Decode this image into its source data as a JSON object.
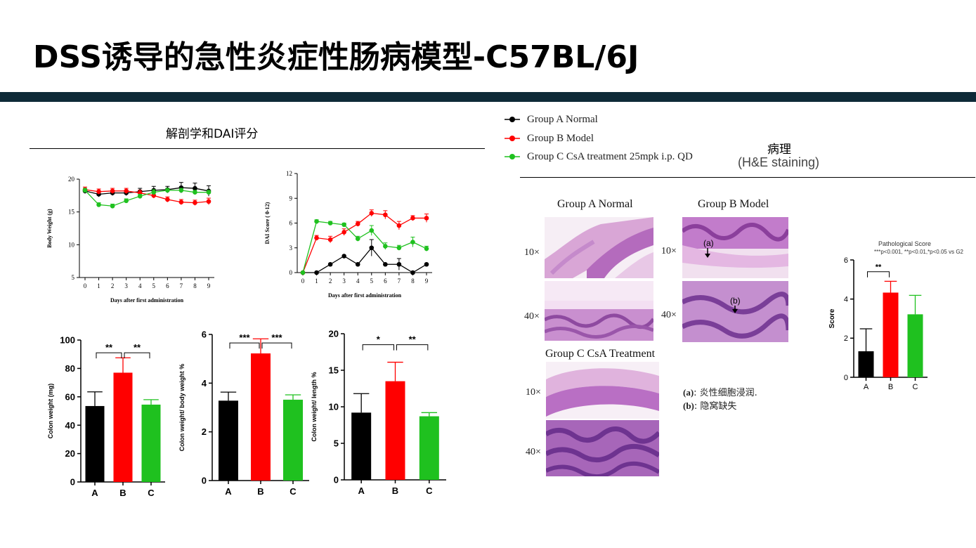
{
  "slide": {
    "title": "DSS诱导的急性炎症性肠病模型-C57BL/6J",
    "left_heading": "解剖学和DAI评分",
    "right_heading": "病理",
    "right_subheading": "(H&E staining)"
  },
  "colors": {
    "group_a": "#000000",
    "group_b": "#ff0000",
    "group_c": "#1fc11f",
    "bar": "#0e2a38"
  },
  "legend": [
    {
      "label": "Group A Normal",
      "color": "#000000"
    },
    {
      "label": "Group B Model",
      "color": "#ff0000"
    },
    {
      "label": "Group C CsA treatment 25mpk i.p. QD",
      "color": "#1fc11f"
    }
  ],
  "histology": {
    "group_a": "Group A Normal",
    "group_b": "Group B Model",
    "group_c": "Group C CsA Treatment",
    "mag_10": "10×",
    "mag_40": "40×",
    "marker_a": "(a)",
    "marker_b": "(b)",
    "note_a_key": "(a)",
    "note_a_text": ": 炎性细胞浸润.",
    "note_b_key": "(b)",
    "note_b_text": ": 隐窝缺失"
  },
  "chart_data": [
    {
      "id": "bw",
      "type": "line",
      "xlabel": "Days after first administration",
      "ylabel": "Body Weight (g)",
      "x": [
        0,
        1,
        2,
        3,
        4,
        5,
        6,
        7,
        8,
        9
      ],
      "ylim": [
        5,
        20
      ],
      "yticks": [
        5,
        10,
        15,
        20
      ],
      "series": [
        {
          "color": "#000000",
          "values": [
            18.2,
            17.7,
            17.9,
            17.9,
            18.1,
            18.3,
            18.4,
            18.7,
            18.6,
            18.2
          ],
          "err": [
            0.4,
            0.4,
            0.4,
            0.4,
            0.5,
            0.6,
            0.5,
            0.8,
            0.8,
            0.8
          ]
        },
        {
          "color": "#ff0000",
          "values": [
            18.4,
            18.1,
            18.2,
            18.2,
            17.9,
            17.5,
            16.9,
            16.5,
            16.4,
            16.6
          ],
          "err": [
            0.4,
            0.4,
            0.4,
            0.4,
            0.4,
            0.4,
            0.4,
            0.4,
            0.4,
            0.5
          ]
        },
        {
          "color": "#1fc11f",
          "values": [
            18.3,
            16.1,
            15.9,
            16.7,
            17.4,
            18.0,
            18.3,
            18.3,
            18.0,
            18.0
          ],
          "err": [
            0.3,
            0.3,
            0.3,
            0.3,
            0.3,
            0.4,
            0.3,
            0.3,
            0.3,
            0.3
          ]
        }
      ]
    },
    {
      "id": "dai",
      "type": "line",
      "xlabel": "Days after first administration",
      "ylabel": "DAI Score ( 0-12)",
      "x": [
        0,
        1,
        2,
        3,
        4,
        5,
        6,
        7,
        8,
        9
      ],
      "ylim": [
        0,
        12
      ],
      "yticks": [
        0,
        3,
        6,
        9,
        12
      ],
      "series": [
        {
          "color": "#000000",
          "values": [
            0,
            0,
            1,
            2,
            1,
            3,
            1,
            1,
            0,
            1
          ],
          "err": [
            0,
            0,
            0,
            0,
            0,
            1,
            0,
            0.7,
            0,
            0
          ]
        },
        {
          "color": "#ff0000",
          "values": [
            0,
            4.2,
            4.0,
            4.9,
            5.9,
            7.2,
            7.0,
            5.7,
            6.6,
            6.6
          ],
          "err": [
            0,
            0.3,
            0.4,
            0.4,
            0.3,
            0.4,
            0.5,
            0.5,
            0.3,
            0.5
          ]
        },
        {
          "color": "#1fc11f",
          "values": [
            0,
            6.2,
            6.0,
            5.8,
            4.1,
            5.1,
            3.2,
            3.0,
            3.7,
            2.9
          ],
          "err": [
            0,
            0.2,
            0.2,
            0.2,
            0.3,
            0.6,
            0.4,
            0.3,
            0.6,
            0.3
          ]
        }
      ]
    },
    {
      "id": "cw",
      "type": "bar",
      "categories": [
        "A",
        "B",
        "C"
      ],
      "ylabel": "Colon weight (mg)",
      "ylim": [
        0,
        100
      ],
      "yticks": [
        0,
        20,
        40,
        60,
        80,
        100
      ],
      "values": [
        53.5,
        77,
        54.5
      ],
      "err": [
        10,
        10.5,
        3.5
      ],
      "colors": [
        "#000000",
        "#ff0000",
        "#1fc11f"
      ],
      "significance": [
        {
          "from": 0,
          "to": 1,
          "label": "**",
          "y": 91
        },
        {
          "from": 1,
          "to": 2,
          "label": "**",
          "y": 91
        }
      ]
    },
    {
      "id": "cwbw",
      "type": "bar",
      "categories": [
        "A",
        "B",
        "C"
      ],
      "ylabel": "Colon weight/ body weight %",
      "ylim": [
        0,
        6
      ],
      "yticks": [
        0,
        2,
        4,
        6
      ],
      "values": [
        3.28,
        5.22,
        3.32
      ],
      "err": [
        0.35,
        0.6,
        0.2
      ],
      "colors": [
        "#000000",
        "#ff0000",
        "#1fc11f"
      ],
      "significance": [
        {
          "from": 0,
          "to": 1,
          "label": "***",
          "y": 5.65
        },
        {
          "from": 1,
          "to": 2,
          "label": "***",
          "y": 5.65
        }
      ]
    },
    {
      "id": "cwl",
      "type": "bar",
      "categories": [
        "A",
        "B",
        "C"
      ],
      "ylabel": "Colon weight/ length %",
      "ylim": [
        0,
        20
      ],
      "yticks": [
        0,
        5,
        10,
        15,
        20
      ],
      "values": [
        9.2,
        13.5,
        8.7
      ],
      "err": [
        2.6,
        2.6,
        0.5
      ],
      "colors": [
        "#000000",
        "#ff0000",
        "#1fc11f"
      ],
      "significance": [
        {
          "from": 0,
          "to": 1,
          "label": "*",
          "y": 18.5
        },
        {
          "from": 1,
          "to": 2,
          "label": "**",
          "y": 18.5
        }
      ]
    },
    {
      "id": "path",
      "type": "bar",
      "title": "Pathological Score",
      "subtitle": "***p<0.001, **p<0.01,*p<0.05 vs G2",
      "categories": [
        "A",
        "B",
        "C"
      ],
      "ylabel": "Score",
      "ylim": [
        0,
        6
      ],
      "yticks": [
        0,
        2,
        4,
        6
      ],
      "values": [
        1.33,
        4.33,
        3.22
      ],
      "err": [
        1.15,
        0.58,
        0.97
      ],
      "colors": [
        "#000000",
        "#ff0000",
        "#1fc11f"
      ],
      "significance": [
        {
          "from": 0,
          "to": 1,
          "label": "**",
          "y": 5.4
        }
      ]
    }
  ]
}
